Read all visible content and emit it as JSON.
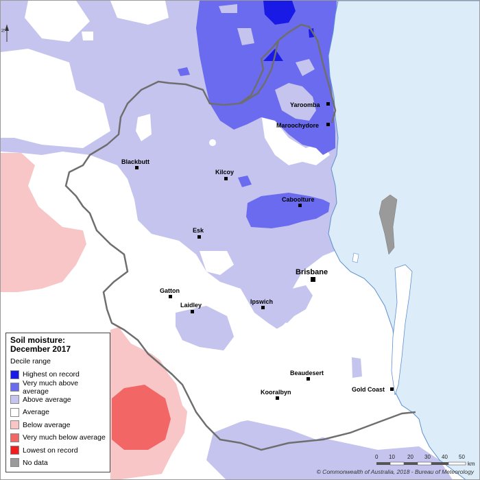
{
  "legend": {
    "title_line1": "Soil moisture:",
    "title_line2": "December 2017",
    "subtitle": "Decile range",
    "items": [
      {
        "label": "Highest on record",
        "color": "#1a1ae6"
      },
      {
        "label": "Very much above average",
        "color": "#6b6bef"
      },
      {
        "label": "Above average",
        "color": "#c4c4ee"
      },
      {
        "label": "Average",
        "color": "#ffffff"
      },
      {
        "label": "Below average",
        "color": "#f8c6c6"
      },
      {
        "label": "Very much below average",
        "color": "#f26666"
      },
      {
        "label": "Lowest on record",
        "color": "#f01e1e"
      },
      {
        "label": "No data",
        "color": "#9a9a9a"
      }
    ]
  },
  "towns": [
    {
      "name": "Yaroomba"
    },
    {
      "name": "Maroochydore"
    },
    {
      "name": "Blackbutt"
    },
    {
      "name": "Kilcoy"
    },
    {
      "name": "Caboolture"
    },
    {
      "name": "Esk"
    },
    {
      "name": "Brisbane"
    },
    {
      "name": "Gatton"
    },
    {
      "name": "Laidley"
    },
    {
      "name": "Ipswich"
    },
    {
      "name": "Beaudesert"
    },
    {
      "name": "Kooralbyn"
    },
    {
      "name": "Gold Coast"
    }
  ],
  "scale_bar": {
    "ticks": [
      "0",
      "10",
      "20",
      "30",
      "40",
      "50"
    ],
    "unit": "km"
  },
  "north_label": "N",
  "copyright": "© Commonwealth of Australia, 2018 - Bureau of Meteorology",
  "colors": {
    "ocean": "#dcecf8",
    "coast": "#5b8fcf",
    "boundary": "#6e6e6e"
  }
}
